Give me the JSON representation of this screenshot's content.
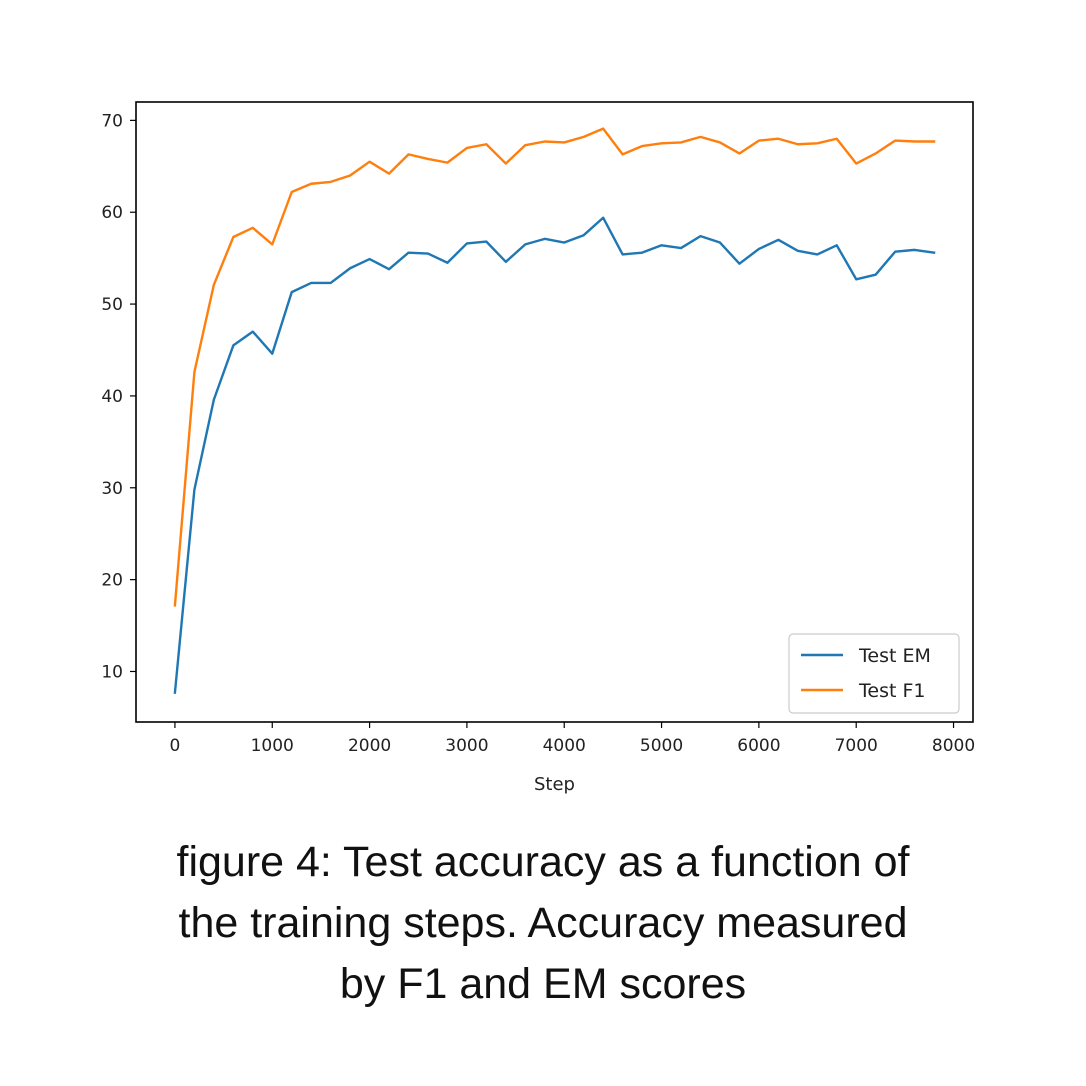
{
  "chart_data": {
    "type": "line",
    "title": "",
    "xlabel": "Step",
    "ylabel": "",
    "xlim": [
      -400,
      8200
    ],
    "ylim": [
      4.5,
      72
    ],
    "xticks": [
      0,
      1000,
      2000,
      3000,
      4000,
      5000,
      6000,
      7000,
      8000
    ],
    "yticks": [
      10,
      20,
      30,
      40,
      50,
      60,
      70
    ],
    "grid": false,
    "legend_position": "lower-right",
    "x": [
      0,
      200,
      400,
      600,
      800,
      1000,
      1200,
      1400,
      1600,
      1800,
      2000,
      2200,
      2400,
      2600,
      2800,
      3000,
      3200,
      3400,
      3600,
      3800,
      4000,
      4200,
      4400,
      4600,
      4800,
      5000,
      5200,
      5400,
      5600,
      5800,
      6000,
      6200,
      6400,
      6600,
      6800,
      7000,
      7200,
      7400,
      7600,
      7800
    ],
    "series": [
      {
        "name": "Test EM",
        "color": "#1f77b4",
        "values": [
          7.7,
          29.8,
          39.6,
          45.5,
          47.0,
          44.6,
          51.3,
          52.3,
          52.3,
          53.9,
          54.9,
          53.8,
          55.6,
          55.5,
          54.5,
          56.6,
          56.8,
          54.6,
          56.5,
          57.1,
          56.7,
          57.5,
          59.4,
          55.4,
          55.6,
          56.4,
          56.1,
          57.4,
          56.7,
          54.4,
          56.0,
          57.0,
          55.8,
          55.4,
          56.4,
          52.7,
          53.2,
          55.7,
          55.9,
          55.6
        ]
      },
      {
        "name": "Test F1",
        "color": "#ff7f0e",
        "values": [
          17.2,
          42.6,
          52.1,
          57.3,
          58.3,
          56.5,
          62.2,
          63.1,
          63.3,
          64.0,
          65.5,
          64.2,
          66.3,
          65.8,
          65.4,
          67.0,
          67.4,
          65.3,
          67.3,
          67.7,
          67.6,
          68.2,
          69.1,
          66.3,
          67.2,
          67.5,
          67.6,
          68.2,
          67.6,
          66.4,
          67.8,
          68.0,
          67.4,
          67.5,
          68.0,
          65.3,
          66.4,
          67.8,
          67.7,
          67.7
        ]
      }
    ]
  },
  "caption": {
    "line1": "figure 4: Test accuracy as a function of",
    "line2": "the training steps. Accuracy measured",
    "line3": "by F1 and EM scores"
  }
}
